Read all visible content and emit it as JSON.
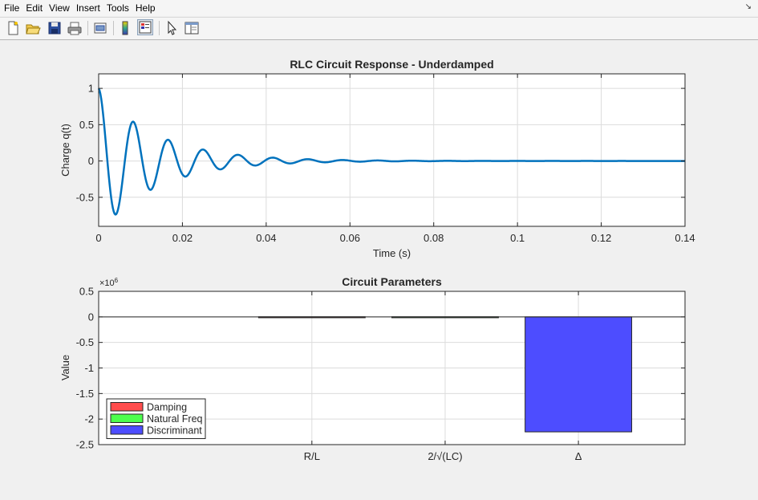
{
  "menu": {
    "items": [
      "File",
      "Edit",
      "View",
      "Insert",
      "Tools",
      "Help"
    ],
    "dock_glyph": "↘"
  },
  "toolbar": {
    "buttons": [
      "new-figure-icon",
      "open-file-icon",
      "save-icon",
      "print-icon",
      "print-preview-icon",
      "colorbar-icon",
      "legend-icon",
      "pointer-icon",
      "property-inspector-icon"
    ]
  },
  "chart_data": [
    {
      "type": "line",
      "title": "RLC Circuit Response - Underdamped",
      "xlabel": "Time (s)",
      "ylabel": "Charge q(t)",
      "xlim": [
        0,
        0.14
      ],
      "ylim": [
        -0.9,
        1.2
      ],
      "xticks": [
        0,
        0.02,
        0.04,
        0.06,
        0.08,
        0.1,
        0.12,
        0.14
      ],
      "xticklabels": [
        "0",
        "0.02",
        "0.04",
        "0.06",
        "0.08",
        "0.1",
        "0.12",
        "0.14"
      ],
      "yticks": [
        -0.5,
        0,
        0.5,
        1
      ],
      "yticklabels": [
        "-0.5",
        "0",
        "0.5",
        "1"
      ],
      "grid": true,
      "series": [
        {
          "color": "#0072bd",
          "model": "exp(-t/tau)*cos(2*pi*f*t)",
          "tau": 0.0135,
          "f": 120,
          "x_range": [
            0,
            0.14
          ],
          "samples": 700
        }
      ]
    },
    {
      "type": "bar",
      "title": "Circuit Parameters",
      "ylabel": "Value",
      "exponent_label": "×10",
      "exponent_power": "6",
      "categories": [
        "R/L",
        "2/√(LC)",
        "Δ"
      ],
      "values": [
        0.002,
        0.002,
        -2.25
      ],
      "value_multiplier": 1000000,
      "ylim": [
        -2.5,
        0.5
      ],
      "yticks": [
        -2.5,
        -2,
        -1.5,
        -1,
        -0.5,
        0,
        0.5
      ],
      "yticklabels": [
        "-2.5",
        "-2",
        "-1.5",
        "-1",
        "-0.5",
        "0",
        "0.5"
      ],
      "bar_colors": [
        "#ff4d4d",
        "#4dff4d",
        "#4d4dff"
      ],
      "grid": true,
      "legend": {
        "location": "bottom-left",
        "entries": [
          {
            "label": "Damping",
            "color": "#ff4d4d"
          },
          {
            "label": "Natural Freq",
            "color": "#4dff4d"
          },
          {
            "label": "Discriminant",
            "color": "#4d4dff"
          }
        ]
      }
    }
  ]
}
